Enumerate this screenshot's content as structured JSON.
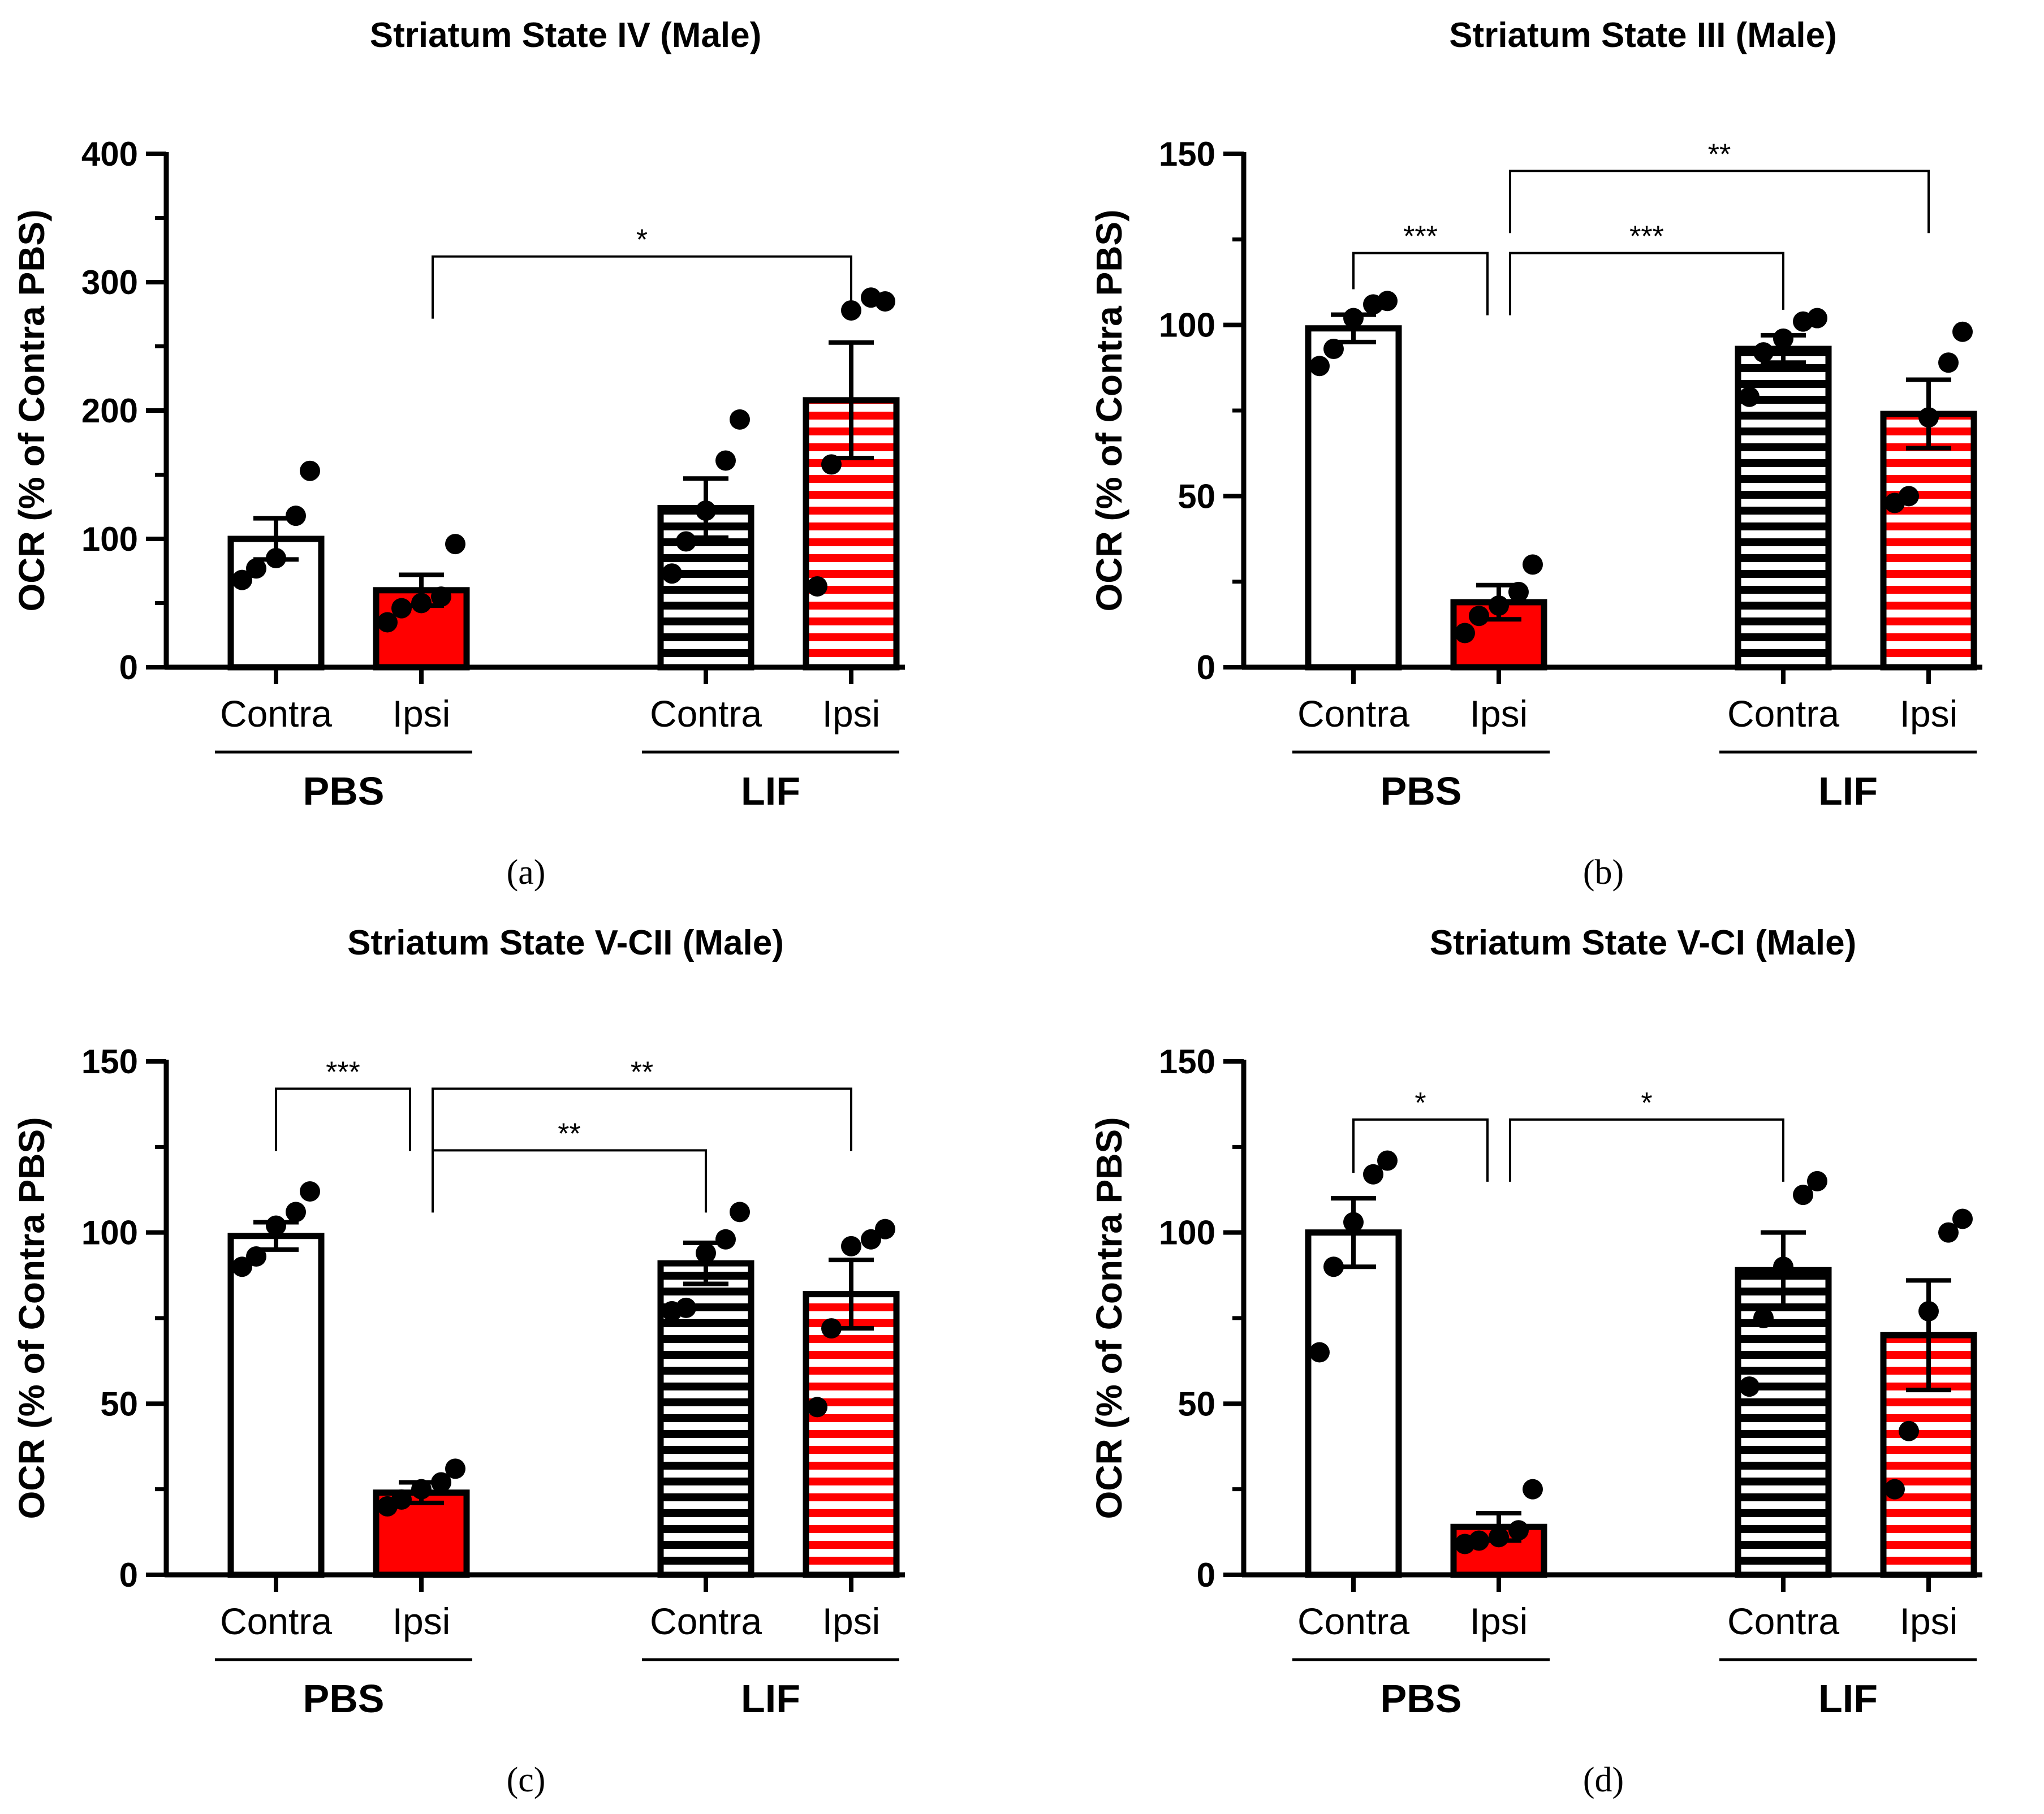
{
  "chart_data": [
    {
      "type": "bar",
      "title": "Striatum State IV (Male)",
      "panel_label": "(a)",
      "ylabel": "OCR (% of Contra PBS)",
      "ylim": [
        0,
        400
      ],
      "yticks": [
        "0",
        "100",
        "200",
        "300",
        "400"
      ],
      "categories": [
        "Contra",
        "Ipsi",
        "Contra",
        "Ipsi"
      ],
      "groups": [
        "PBS",
        "LIF"
      ],
      "bars": [
        {
          "group": "PBS",
          "label": "Contra",
          "mean": 100,
          "sem": 16,
          "fill": "#ffffff",
          "stripes": "none",
          "points": [
            68,
            77,
            85,
            118,
            153
          ]
        },
        {
          "group": "PBS",
          "label": "Ipsi",
          "mean": 60,
          "sem": 12,
          "fill": "#ff0000",
          "stripes": "none",
          "points": [
            35,
            46,
            50,
            55,
            96
          ]
        },
        {
          "group": "LIF",
          "label": "Contra",
          "mean": 124,
          "sem": 23,
          "fill": "#ffffff",
          "stripes": "#000000",
          "points": [
            73,
            98,
            122,
            161,
            193
          ]
        },
        {
          "group": "LIF",
          "label": "Ipsi",
          "mean": 208,
          "sem": 45,
          "fill": "#ffffff",
          "stripes": "#ff0000",
          "points": [
            63,
            158,
            278,
            288,
            285
          ]
        }
      ],
      "comparisons": [
        {
          "from": 1,
          "to": 3,
          "label": "*",
          "y": 320
        }
      ]
    },
    {
      "type": "bar",
      "title": "Striatum State III (Male)",
      "panel_label": "(b)",
      "ylabel": "OCR (% of Contra PBS)",
      "ylim": [
        0,
        150
      ],
      "yticks": [
        "0",
        "50",
        "100",
        "150"
      ],
      "categories": [
        "Contra",
        "Ipsi",
        "Contra",
        "Ipsi"
      ],
      "groups": [
        "PBS",
        "LIF"
      ],
      "bars": [
        {
          "group": "PBS",
          "label": "Contra",
          "mean": 99,
          "sem": 4,
          "fill": "#ffffff",
          "stripes": "none",
          "points": [
            88,
            93,
            102,
            106,
            107
          ]
        },
        {
          "group": "PBS",
          "label": "Ipsi",
          "mean": 19,
          "sem": 5,
          "fill": "#ff0000",
          "stripes": "none",
          "points": [
            10,
            15,
            18,
            22,
            30
          ]
        },
        {
          "group": "LIF",
          "label": "Contra",
          "mean": 93,
          "sem": 4,
          "fill": "#ffffff",
          "stripes": "#000000",
          "points": [
            79,
            92,
            96,
            101,
            102
          ]
        },
        {
          "group": "LIF",
          "label": "Ipsi",
          "mean": 74,
          "sem": 10,
          "fill": "#ffffff",
          "stripes": "#ff0000",
          "points": [
            48,
            50,
            73,
            89,
            98
          ]
        }
      ],
      "comparisons": [
        {
          "from": 0,
          "to": 1,
          "label": "***",
          "y": 121
        },
        {
          "from": 1,
          "to": 2,
          "label": "***",
          "y": 121
        },
        {
          "from": 1,
          "to": 3,
          "label": "**",
          "y": 145
        }
      ]
    },
    {
      "type": "bar",
      "title": "Striatum State V-CII (Male)",
      "panel_label": "(c)",
      "ylabel": "OCR (% of Contra PBS)",
      "ylim": [
        0,
        150
      ],
      "yticks": [
        "0",
        "50",
        "100",
        "150"
      ],
      "categories": [
        "Contra",
        "Ipsi",
        "Contra",
        "Ipsi"
      ],
      "groups": [
        "PBS",
        "LIF"
      ],
      "bars": [
        {
          "group": "PBS",
          "label": "Contra",
          "mean": 99,
          "sem": 4,
          "fill": "#ffffff",
          "stripes": "none",
          "points": [
            90,
            93,
            102,
            106,
            112
          ]
        },
        {
          "group": "PBS",
          "label": "Ipsi",
          "mean": 24,
          "sem": 3,
          "fill": "#ff0000",
          "stripes": "none",
          "points": [
            20,
            22,
            25,
            27,
            31
          ]
        },
        {
          "group": "LIF",
          "label": "Contra",
          "mean": 91,
          "sem": 6,
          "fill": "#ffffff",
          "stripes": "#000000",
          "points": [
            77,
            78,
            94,
            98,
            106
          ]
        },
        {
          "group": "LIF",
          "label": "Ipsi",
          "mean": 82,
          "sem": 10,
          "fill": "#ffffff",
          "stripes": "#ff0000",
          "points": [
            49,
            72,
            96,
            98,
            101
          ]
        }
      ],
      "comparisons": [
        {
          "from": 0,
          "to": 1,
          "label": "***",
          "y": 142
        },
        {
          "from": 1,
          "to": 3,
          "label": "**",
          "y": 142
        },
        {
          "from": 1,
          "to": 2,
          "label": "**",
          "y": 124
        }
      ]
    },
    {
      "type": "bar",
      "title": "Striatum State V-CI (Male)",
      "panel_label": "(d)",
      "ylabel": "OCR (% of Contra PBS)",
      "ylim": [
        0,
        150
      ],
      "yticks": [
        "0",
        "50",
        "100",
        "150"
      ],
      "categories": [
        "Contra",
        "Ipsi",
        "Contra",
        "Ipsi"
      ],
      "groups": [
        "PBS",
        "LIF"
      ],
      "bars": [
        {
          "group": "PBS",
          "label": "Contra",
          "mean": 100,
          "sem": 10,
          "fill": "#ffffff",
          "stripes": "none",
          "points": [
            65,
            90,
            103,
            117,
            121
          ]
        },
        {
          "group": "PBS",
          "label": "Ipsi",
          "mean": 14,
          "sem": 4,
          "fill": "#ff0000",
          "stripes": "none",
          "points": [
            9,
            10,
            11,
            13,
            25
          ]
        },
        {
          "group": "LIF",
          "label": "Contra",
          "mean": 89,
          "sem": 11,
          "fill": "#ffffff",
          "stripes": "#000000",
          "points": [
            55,
            75,
            90,
            111,
            115
          ]
        },
        {
          "group": "LIF",
          "label": "Ipsi",
          "mean": 70,
          "sem": 16,
          "fill": "#ffffff",
          "stripes": "#ff0000",
          "points": [
            25,
            42,
            77,
            100,
            104
          ]
        }
      ],
      "comparisons": [
        {
          "from": 0,
          "to": 1,
          "label": "*",
          "y": 133
        },
        {
          "from": 1,
          "to": 2,
          "label": "*",
          "y": 133
        }
      ]
    }
  ]
}
